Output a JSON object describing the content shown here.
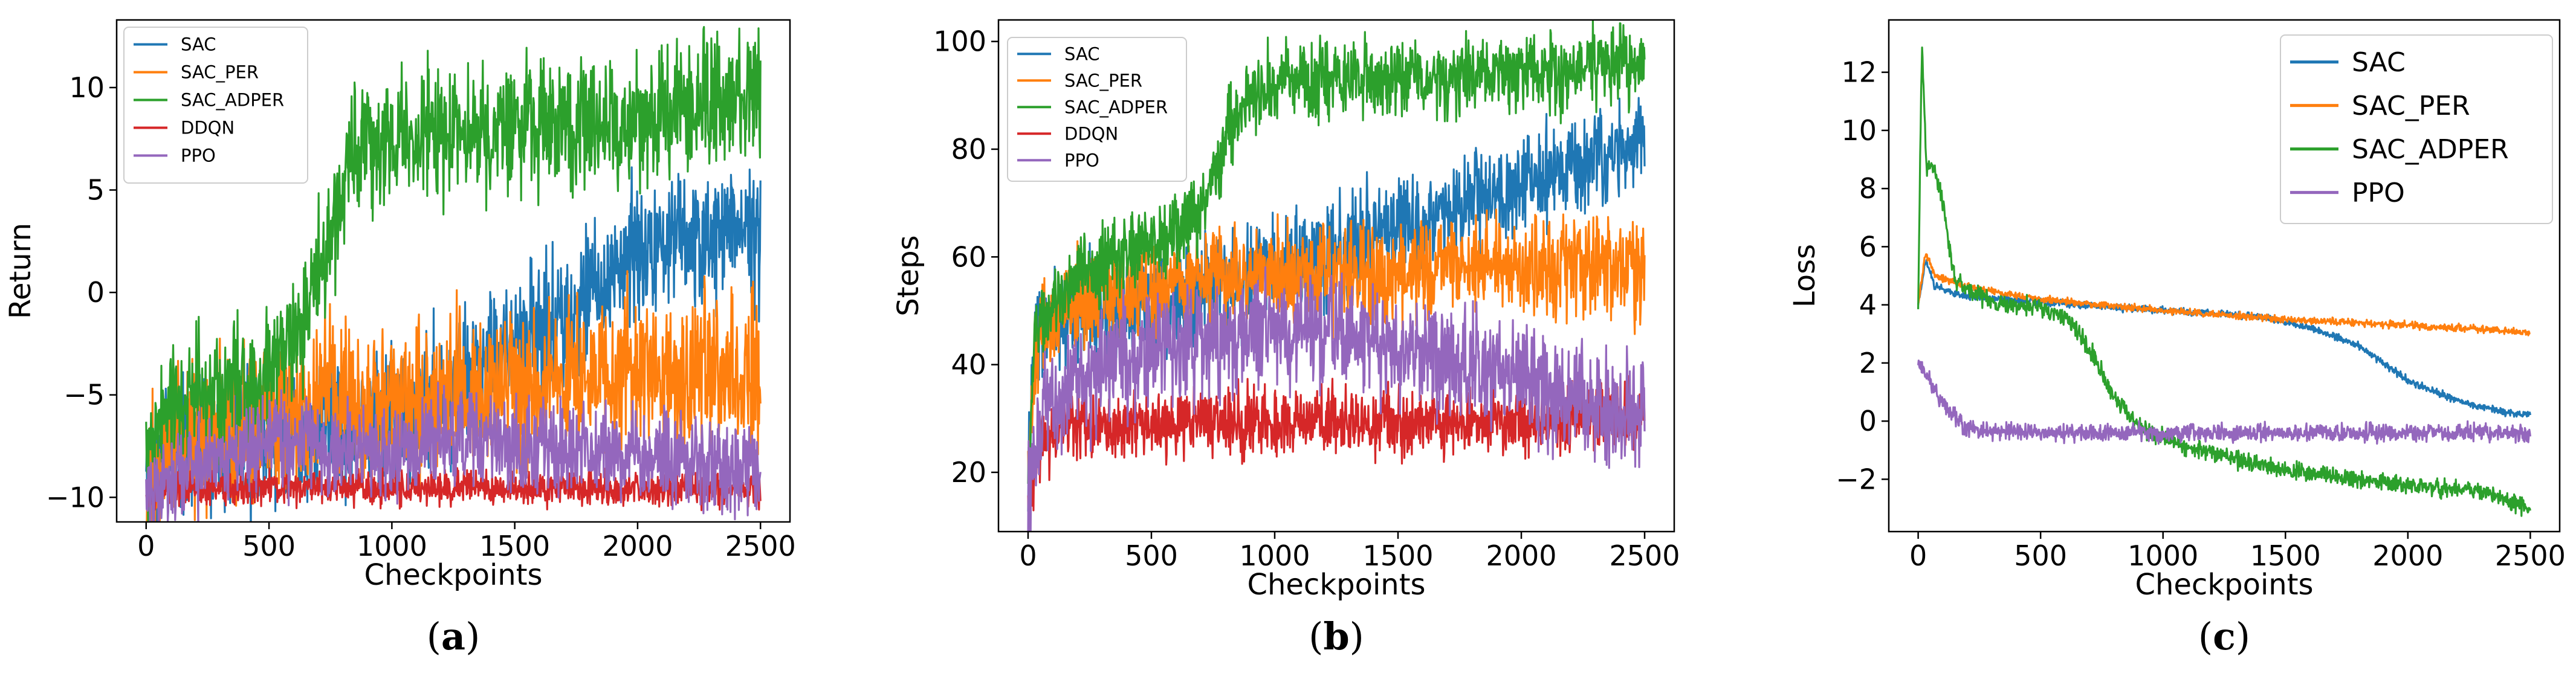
{
  "colors": {
    "SAC": "#1f77b4",
    "SAC_PER": "#ff7f0e",
    "SAC_ADPER": "#2ca02c",
    "DDQN": "#d62728",
    "PPO": "#9467bd"
  },
  "chart_data": [
    {
      "type": "line",
      "caption": {
        "open": "(",
        "letter": "a",
        "close": ")"
      },
      "xlabel": "Checkpoints",
      "ylabel": "Return",
      "xlim": [
        -120,
        2620
      ],
      "ylim": [
        -11.2,
        13.3
      ],
      "xticks": [
        0,
        500,
        1000,
        1500,
        2000,
        2500
      ],
      "xtick_labels": [
        "0",
        "500",
        "1000",
        "1500",
        "2000",
        "2500"
      ],
      "yticks": [
        -10,
        -5,
        0,
        5,
        10
      ],
      "ytick_labels": [
        "−10",
        "−5",
        "0",
        "5",
        "10"
      ],
      "legend": {
        "position": "top-left",
        "entries": [
          "SAC",
          "SAC_PER",
          "SAC_ADPER",
          "DDQN",
          "PPO"
        ]
      },
      "series": [
        {
          "name": "SAC",
          "noise": 1.6,
          "points": [
            [
              0,
              -10
            ],
            [
              100,
              -7
            ],
            [
              300,
              -7.5
            ],
            [
              700,
              -7
            ],
            [
              1000,
              -6
            ],
            [
              1300,
              -4.5
            ],
            [
              1500,
              -2
            ],
            [
              1700,
              -1.5
            ],
            [
              1800,
              0
            ],
            [
              2000,
              2
            ],
            [
              2200,
              2.5
            ],
            [
              2500,
              3
            ]
          ]
        },
        {
          "name": "SAC_PER",
          "noise": 1.8,
          "points": [
            [
              0,
              -10
            ],
            [
              100,
              -7
            ],
            [
              300,
              -6.5
            ],
            [
              500,
              -6
            ],
            [
              700,
              -5
            ],
            [
              1000,
              -5
            ],
            [
              1500,
              -4.5
            ],
            [
              2000,
              -4
            ],
            [
              2500,
              -4
            ]
          ]
        },
        {
          "name": "SAC_ADPER",
          "noise": 1.5,
          "points": [
            [
              0,
              -9
            ],
            [
              60,
              -6
            ],
            [
              200,
              -5
            ],
            [
              400,
              -4.5
            ],
            [
              550,
              -3
            ],
            [
              650,
              -1
            ],
            [
              750,
              3
            ],
            [
              850,
              7
            ],
            [
              1000,
              7.3
            ],
            [
              1500,
              8
            ],
            [
              2000,
              8.3
            ],
            [
              2400,
              9.5
            ],
            [
              2500,
              10
            ]
          ]
        },
        {
          "name": "DDQN",
          "noise": 0.4,
          "points": [
            [
              0,
              -10
            ],
            [
              100,
              -9.5
            ],
            [
              2500,
              -9.6
            ]
          ]
        },
        {
          "name": "PPO",
          "noise": 1.1,
          "points": [
            [
              0,
              -10
            ],
            [
              100,
              -9
            ],
            [
              300,
              -8
            ],
            [
              500,
              -7
            ],
            [
              700,
              -7.5
            ],
            [
              1000,
              -8
            ],
            [
              1200,
              -7
            ],
            [
              1500,
              -7.5
            ],
            [
              2000,
              -8
            ],
            [
              2300,
              -8.5
            ],
            [
              2500,
              -9
            ]
          ]
        }
      ]
    },
    {
      "type": "line",
      "caption": {
        "open": "(",
        "letter": "b",
        "close": ")"
      },
      "xlabel": "Checkpoints",
      "ylabel": "Steps",
      "xlim": [
        -120,
        2620
      ],
      "ylim": [
        9,
        104
      ],
      "xticks": [
        0,
        500,
        1000,
        1500,
        2000,
        2500
      ],
      "xtick_labels": [
        "0",
        "500",
        "1000",
        "1500",
        "2000",
        "2500"
      ],
      "yticks": [
        20,
        40,
        60,
        80,
        100
      ],
      "ytick_labels": [
        "20",
        "40",
        "60",
        "80",
        "100"
      ],
      "legend": {
        "position": "top-left",
        "entries": [
          "SAC",
          "SAC_PER",
          "SAC_ADPER",
          "DDQN",
          "PPO"
        ]
      },
      "series": [
        {
          "name": "SAC",
          "noise": 4.5,
          "points": [
            [
              0,
              20
            ],
            [
              30,
              45
            ],
            [
              200,
              50
            ],
            [
              500,
              52
            ],
            [
              800,
              55
            ],
            [
              1000,
              58
            ],
            [
              1300,
              62
            ],
            [
              1500,
              65
            ],
            [
              1700,
              68
            ],
            [
              2000,
              73
            ],
            [
              2300,
              78
            ],
            [
              2500,
              82
            ]
          ]
        },
        {
          "name": "SAC_PER",
          "noise": 4.5,
          "points": [
            [
              0,
              20
            ],
            [
              30,
              45
            ],
            [
              200,
              52
            ],
            [
              400,
              53
            ],
            [
              700,
              56
            ],
            [
              1000,
              57
            ],
            [
              1500,
              57
            ],
            [
              2000,
              58
            ],
            [
              2500,
              58
            ]
          ]
        },
        {
          "name": "SAC_ADPER",
          "noise": 3.5,
          "points": [
            [
              0,
              20
            ],
            [
              30,
              48
            ],
            [
              200,
              57
            ],
            [
              500,
              62
            ],
            [
              700,
              68
            ],
            [
              800,
              82
            ],
            [
              900,
              90
            ],
            [
              1000,
              92
            ],
            [
              1500,
              93
            ],
            [
              2000,
              94
            ],
            [
              2500,
              96
            ]
          ]
        },
        {
          "name": "DDQN",
          "noise": 3.0,
          "points": [
            [
              0,
              16
            ],
            [
              50,
              26
            ],
            [
              200,
              29
            ],
            [
              2500,
              30
            ]
          ]
        },
        {
          "name": "PPO",
          "noise": 5.0,
          "points": [
            [
              0,
              16
            ],
            [
              50,
              30
            ],
            [
              200,
              37
            ],
            [
              500,
              43
            ],
            [
              800,
              45
            ],
            [
              1000,
              47
            ],
            [
              1500,
              43
            ],
            [
              2000,
              38
            ],
            [
              2300,
              32
            ],
            [
              2500,
              30
            ]
          ]
        }
      ]
    },
    {
      "type": "line",
      "caption": {
        "open": "(",
        "letter": "c",
        "close": ")"
      },
      "xlabel": "Checkpoints",
      "ylabel": "Loss",
      "xlim": [
        -120,
        2620
      ],
      "ylim": [
        -3.8,
        13.8
      ],
      "xticks": [
        0,
        500,
        1000,
        1500,
        2000,
        2500
      ],
      "xtick_labels": [
        "0",
        "500",
        "1000",
        "1500",
        "2000",
        "2500"
      ],
      "yticks": [
        -2,
        0,
        2,
        4,
        6,
        8,
        10,
        12
      ],
      "ytick_labels": [
        "−2",
        "0",
        "2",
        "4",
        "6",
        "8",
        "10",
        "12"
      ],
      "legend": {
        "position": "top-right",
        "entries": [
          "SAC",
          "SAC_PER",
          "SAC_ADPER",
          "PPO"
        ]
      },
      "series": [
        {
          "name": "SAC",
          "noise": 0.06,
          "points": [
            [
              0,
              4
            ],
            [
              30,
              5.5
            ],
            [
              70,
              4.6
            ],
            [
              200,
              4.3
            ],
            [
              500,
              4.1
            ],
            [
              1000,
              3.8
            ],
            [
              1400,
              3.6
            ],
            [
              1600,
              3.2
            ],
            [
              1800,
              2.6
            ],
            [
              1900,
              2.0
            ],
            [
              2000,
              1.4
            ],
            [
              2200,
              0.7
            ],
            [
              2400,
              0.3
            ],
            [
              2500,
              0.2
            ]
          ]
        },
        {
          "name": "SAC_PER",
          "noise": 0.06,
          "points": [
            [
              0,
              4
            ],
            [
              30,
              5.8
            ],
            [
              70,
              5.0
            ],
            [
              200,
              4.6
            ],
            [
              500,
              4.2
            ],
            [
              1000,
              3.8
            ],
            [
              1500,
              3.5
            ],
            [
              2000,
              3.3
            ],
            [
              2500,
              3.05
            ]
          ]
        },
        {
          "name": "SAC_ADPER",
          "noise": 0.15,
          "points": [
            [
              0,
              4
            ],
            [
              15,
              13
            ],
            [
              35,
              8.5
            ],
            [
              60,
              8.8
            ],
            [
              100,
              7.6
            ],
            [
              150,
              4.8
            ],
            [
              300,
              4.1
            ],
            [
              500,
              3.9
            ],
            [
              600,
              3.6
            ],
            [
              700,
              2.5
            ],
            [
              800,
              0.8
            ],
            [
              900,
              -0.2
            ],
            [
              1100,
              -0.9
            ],
            [
              1500,
              -1.7
            ],
            [
              2000,
              -2.2
            ],
            [
              2300,
              -2.4
            ],
            [
              2500,
              -3.0
            ]
          ]
        },
        {
          "name": "PPO",
          "noise": 0.15,
          "points": [
            [
              0,
              2
            ],
            [
              30,
              1.7
            ],
            [
              100,
              0.6
            ],
            [
              200,
              -0.3
            ],
            [
              500,
              -0.4
            ],
            [
              1000,
              -0.4
            ],
            [
              2500,
              -0.4
            ]
          ]
        }
      ]
    }
  ]
}
